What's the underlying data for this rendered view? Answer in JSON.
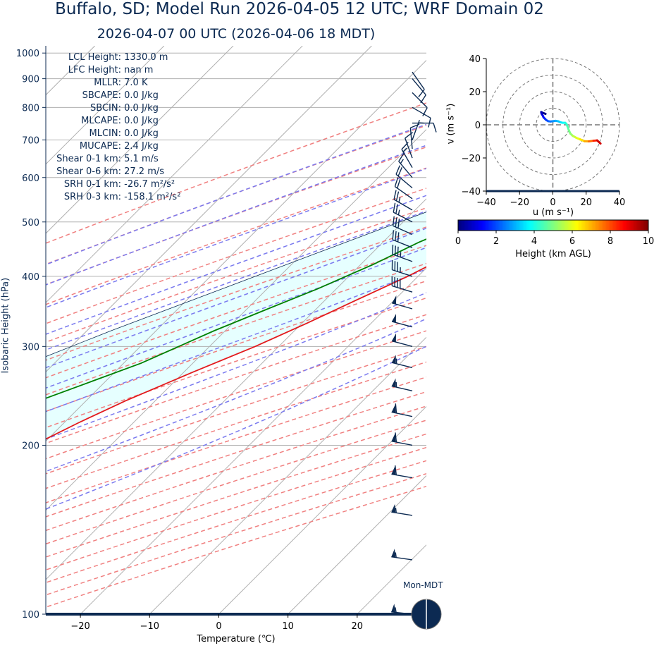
{
  "title": "Buffalo, SD; Model Run 2026-04-05 12 UTC; WRF Domain 02",
  "subtitle": "2026-04-07 00 UTC  (2026-04-06 18 MDT)",
  "stats": [
    {
      "label": "LCL Height:",
      "value": "1330.0 m"
    },
    {
      "label": "LFC Height:",
      "value": "nan m"
    },
    {
      "label": "MLLR:",
      "value": "7.0 K"
    },
    {
      "label": "SBCAPE:",
      "value": "0.0 J/kg"
    },
    {
      "label": "SBCIN:",
      "value": "0.0 J/kg"
    },
    {
      "label": "MLCAPE:",
      "value": "0.0 J/kg"
    },
    {
      "label": "MLCIN:",
      "value": "0.0 J/kg"
    },
    {
      "label": "MUCAPE:",
      "value": "2.4 J/kg"
    },
    {
      "label": "Shear 0-1 km:",
      "value": "5.1 m/s"
    },
    {
      "label": "Shear 0-6 km:",
      "value": "27.2 m/s"
    },
    {
      "label": "SRH 0-1 km:",
      "value": "-26.7 m²/s²"
    },
    {
      "label": "SRH 0-3 km:",
      "value": "-158.1 m²/s²"
    }
  ],
  "moon_label": "Mon-MDT",
  "colors": {
    "temperature": "#e31a1c",
    "dewpoint": "#008000",
    "parcel": "#0c2a52",
    "dry_adiabat": "#f08080",
    "moist_adiabat": "#7b7bef",
    "mixing_ratio": "#2ca02c",
    "cape_fill": "#e6ffff",
    "lcl_marker": "#ffa500",
    "text": "#0c2a52"
  },
  "chart_data": [
    {
      "type": "line",
      "subtype": "skew-t log-p",
      "title": "2026-04-07 00 UTC  (2026-04-06 18 MDT)",
      "xlabel": "Temperature (℃)",
      "ylabel": "Isobaric Height (hPa)",
      "xlim": [
        -25,
        30
      ],
      "ylim": [
        1030,
        100
      ],
      "yscale": "log",
      "xticks": [
        -20,
        -10,
        0,
        10,
        20
      ],
      "yticks": [
        100,
        200,
        300,
        400,
        500,
        600,
        700,
        800,
        900,
        1000
      ],
      "grid": true,
      "series": [
        {
          "name": "Temperature",
          "p": [
            917,
            905,
            895,
            885,
            870,
            855,
            840,
            820,
            800,
            780,
            760,
            740,
            720,
            700,
            680,
            660,
            640,
            620,
            600,
            560,
            520,
            480,
            440,
            400,
            360,
            330,
            300,
            270,
            240,
            220,
            200,
            190,
            180,
            170,
            160,
            150,
            140,
            130,
            120,
            110,
            100
          ],
          "t": [
            6.2,
            5.5,
            4.8,
            4.2,
            3.7,
            3.3,
            2.8,
            2.3,
            1.5,
            0.5,
            -1.2,
            -2.3,
            -2.5,
            -3.0,
            -3.2,
            -4.0,
            -5.0,
            -6.2,
            -7.0,
            -9.6,
            -12.2,
            -15.0,
            -18.2,
            -21.5,
            -25.8,
            -29.3,
            -33.4,
            -38.7,
            -44.3,
            -47.8,
            -51.2,
            -53.0,
            -56.2,
            -59.7,
            -63.0,
            -65.4,
            -67.8,
            -70.1,
            -71.2,
            -71.9,
            -72.6
          ]
        },
        {
          "name": "Dewpoint",
          "p": [
            917,
            900,
            880,
            860,
            840,
            820,
            800,
            780,
            760,
            740,
            720,
            700,
            680,
            660,
            640,
            620,
            600,
            580,
            560,
            540,
            500,
            460,
            420,
            380,
            350,
            320,
            280,
            240,
            200,
            180,
            160,
            150,
            140,
            130,
            120,
            110,
            100
          ],
          "t": [
            1.6,
            1.4,
            1.5,
            2.0,
            2.3,
            2.1,
            1.2,
            1.6,
            3.5,
            3.5,
            4.5,
            4.0,
            1.8,
            -1.9,
            -6.8,
            -12.8,
            -16.5,
            -17.5,
            -18.4,
            -18.9,
            -20.8,
            -24.8,
            -28.2,
            -32.7,
            -37.0,
            -41.6,
            -47.5,
            -56.8,
            -65.6,
            -70.4,
            -77.0,
            -80.0,
            -81.0,
            -81.2,
            -81.0,
            -80.8,
            -80.5
          ]
        },
        {
          "name": "Parcel",
          "p": [
            917,
            860,
            840,
            800,
            760,
            700,
            640,
            600,
            560,
            500,
            440,
            380,
            320,
            280,
            240,
            200,
            160,
            130,
            100
          ],
          "t": [
            6.2,
            1.2,
            -0.2,
            -3.0,
            -6.0,
            -10.5,
            -15.8,
            -19.7,
            -23.8,
            -30.5,
            -38.0,
            -46.5,
            -56.5,
            -63.7,
            -71.3,
            -79.8,
            -88.5,
            -95.8,
            -103.0
          ]
        }
      ],
      "annotations": {
        "lcl_pressure_hPa": 862,
        "lcl_temp_C": 3.4
      },
      "wind_barbs": [
        {
          "p": 100,
          "speed_kt": 55,
          "dir_deg": 276
        },
        {
          "p": 125,
          "speed_kt": 55,
          "dir_deg": 278
        },
        {
          "p": 150,
          "speed_kt": 55,
          "dir_deg": 279
        },
        {
          "p": 175,
          "speed_kt": 60,
          "dir_deg": 280
        },
        {
          "p": 200,
          "speed_kt": 60,
          "dir_deg": 281
        },
        {
          "p": 225,
          "speed_kt": 60,
          "dir_deg": 282
        },
        {
          "p": 250,
          "speed_kt": 55,
          "dir_deg": 283
        },
        {
          "p": 275,
          "speed_kt": 55,
          "dir_deg": 284
        },
        {
          "p": 300,
          "speed_kt": 50,
          "dir_deg": 285
        },
        {
          "p": 325,
          "speed_kt": 50,
          "dir_deg": 285
        },
        {
          "p": 350,
          "speed_kt": 50,
          "dir_deg": 286
        },
        {
          "p": 375,
          "speed_kt": 40,
          "dir_deg": 287
        },
        {
          "p": 400,
          "speed_kt": 35,
          "dir_deg": 288
        },
        {
          "p": 425,
          "speed_kt": 35,
          "dir_deg": 290
        },
        {
          "p": 450,
          "speed_kt": 30,
          "dir_deg": 292
        },
        {
          "p": 475,
          "speed_kt": 30,
          "dir_deg": 294
        },
        {
          "p": 500,
          "speed_kt": 25,
          "dir_deg": 297
        },
        {
          "p": 525,
          "speed_kt": 25,
          "dir_deg": 300
        },
        {
          "p": 550,
          "speed_kt": 20,
          "dir_deg": 305
        },
        {
          "p": 575,
          "speed_kt": 20,
          "dir_deg": 310
        },
        {
          "p": 600,
          "speed_kt": 15,
          "dir_deg": 320
        },
        {
          "p": 625,
          "speed_kt": 15,
          "dir_deg": 330
        },
        {
          "p": 650,
          "speed_kt": 10,
          "dir_deg": 340
        },
        {
          "p": 675,
          "speed_kt": 10,
          "dir_deg": 355
        },
        {
          "p": 700,
          "speed_kt": 5,
          "dir_deg": 20
        },
        {
          "p": 750,
          "speed_kt": 10,
          "dir_deg": 90
        },
        {
          "p": 800,
          "speed_kt": 10,
          "dir_deg": 120
        },
        {
          "p": 850,
          "speed_kt": 10,
          "dir_deg": 135
        },
        {
          "p": 900,
          "speed_kt": 10,
          "dir_deg": 140
        },
        {
          "p": 925,
          "speed_kt": 10,
          "dir_deg": 145
        }
      ]
    },
    {
      "type": "line",
      "subtype": "hodograph",
      "xlabel": "u (m s⁻¹)",
      "ylabel": "v (m s⁻¹)",
      "xlim": [
        -40,
        40
      ],
      "ylim": [
        -40,
        40
      ],
      "xticks": [
        -40,
        -20,
        0,
        20,
        40
      ],
      "yticks": [
        -40,
        -20,
        0,
        20,
        40
      ],
      "rings": [
        10,
        20,
        30,
        40
      ],
      "u": [
        -4.4,
        -6.2,
        -7.0,
        -6.8,
        -6.0,
        -5.6,
        -4.8,
        -3.9,
        -2.8,
        -1.4,
        0.0,
        1.7,
        3.3,
        4.6,
        6.0,
        7.4,
        8.2,
        8.8,
        9.6,
        10.5,
        12.0,
        14.0,
        16.4,
        19.0,
        21.6,
        24.4,
        26.6,
        28.6
      ],
      "v": [
        6.6,
        7.3,
        7.7,
        6.7,
        5.4,
        4.5,
        3.7,
        2.8,
        2.2,
        2.0,
        2.2,
        2.4,
        2.1,
        1.5,
        1.2,
        1.2,
        0.5,
        -1.0,
        -3.3,
        -5.3,
        -6.7,
        -7.8,
        -8.8,
        -9.9,
        -10.0,
        -9.6,
        -9.4,
        -11.3
      ],
      "height_km": [
        0.0,
        0.3,
        0.5,
        0.8,
        1.1,
        1.4,
        1.6,
        1.9,
        2.2,
        2.4,
        2.7,
        3.0,
        3.2,
        3.5,
        3.8,
        4.0,
        4.3,
        4.6,
        4.9,
        5.2,
        5.6,
        6.0,
        6.5,
        7.1,
        7.7,
        8.4,
        9.2,
        10.0
      ]
    },
    {
      "type": "colorbar",
      "label": "Height (km AGL)",
      "range": [
        0,
        10
      ],
      "ticks": [
        0,
        2,
        4,
        6,
        8,
        10
      ],
      "colormap": "jet"
    }
  ]
}
